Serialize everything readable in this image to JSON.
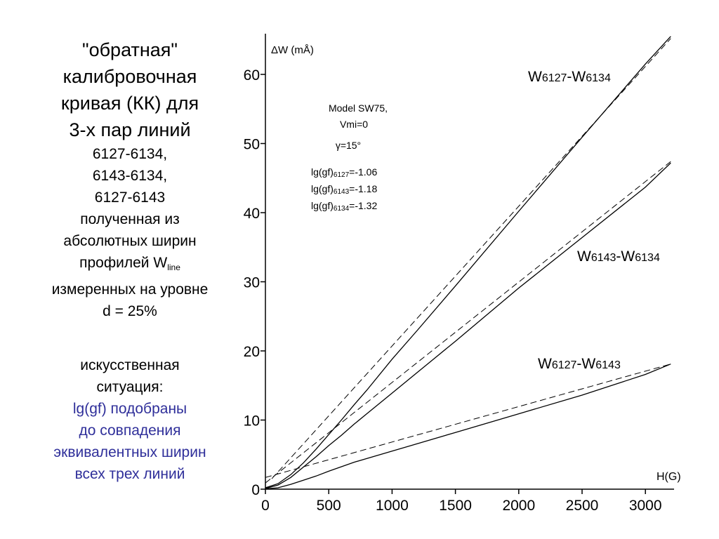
{
  "left": {
    "title_lines": [
      "\"обратная\"",
      "калибровочная",
      "кривая (КК) для",
      "3-х пар линий"
    ],
    "pairs": [
      "6127-6134,",
      "6143-6134,",
      "6127-6143"
    ],
    "desc_line1": "полученная из",
    "desc_line2": "абсолютных ширин",
    "desc_line3_pre": "профилей W",
    "desc_line3_sub": "line",
    "desc_line4": "измеренных на уровне",
    "desc_line5": "d = 25%",
    "situation_lines": [
      "искусственная",
      "ситуация:"
    ],
    "blue_lines": [
      "lg(gf) подобраны",
      "до совпадения",
      "эквивалентных ширин",
      "всех трех линий"
    ]
  },
  "chart_data": {
    "type": "line",
    "xlabel": "H(G)",
    "ylabel": "ΔW (mÅ)",
    "xlim": [
      0,
      3200
    ],
    "ylim": [
      0,
      65
    ],
    "xticks": [
      0,
      500,
      1000,
      1500,
      2000,
      2500,
      3000
    ],
    "yticks": [
      0,
      10,
      20,
      30,
      40,
      50,
      60
    ],
    "grid": false,
    "annotation": {
      "model": "Model SW75,",
      "vmi": "Vmi=0",
      "gamma": "γ=15°",
      "lg1_pre": "lg(gf)",
      "lg1_sub": "6127",
      "lg1_post": "=-1.06",
      "lg2_pre": "lg(gf)",
      "lg2_sub": "6143",
      "lg2_post": "=-1.18",
      "lg3_pre": "lg(gf)",
      "lg3_sub": "6134",
      "lg3_post": "=-1.32"
    },
    "series": [
      {
        "label_parts": [
          "W",
          "6127",
          "-W",
          "6134"
        ],
        "style": "solid",
        "x": [
          0,
          100,
          200,
          300,
          400,
          500,
          600,
          700,
          800,
          1000,
          1200,
          1500,
          2000,
          2500,
          3000,
          3200
        ],
        "y": [
          0.2,
          0.8,
          2.1,
          3.8,
          5.8,
          7.9,
          10.0,
          12.2,
          14.3,
          18.8,
          23.0,
          29.4,
          40.2,
          50.9,
          61.5,
          65.5
        ]
      },
      {
        "style": "dashed",
        "x": [
          50,
          3200
        ],
        "y": [
          1.5,
          65.2
        ]
      },
      {
        "label_parts": [
          "W",
          "6143",
          "-W",
          "6134"
        ],
        "style": "solid",
        "x": [
          0,
          100,
          200,
          300,
          400,
          500,
          600,
          700,
          800,
          1000,
          1200,
          1500,
          2000,
          2500,
          3000,
          3200
        ],
        "y": [
          0.1,
          0.6,
          1.7,
          3.2,
          4.7,
          6.3,
          7.8,
          9.4,
          10.9,
          13.9,
          16.9,
          21.4,
          29.1,
          36.4,
          43.7,
          47.2
        ]
      },
      {
        "style": "dashed",
        "x": [
          0,
          3200
        ],
        "y": [
          0.9,
          47.4
        ]
      },
      {
        "label_parts": [
          "W",
          "6127",
          "-W",
          "6143"
        ],
        "style": "solid",
        "x": [
          0,
          100,
          200,
          300,
          400,
          500,
          700,
          1000,
          1500,
          2000,
          2500,
          3000,
          3200
        ],
        "y": [
          0.05,
          0.2,
          0.7,
          1.3,
          1.9,
          2.6,
          3.9,
          5.5,
          8.2,
          10.9,
          13.6,
          16.6,
          18.1
        ]
      },
      {
        "style": "dashed",
        "x": [
          0,
          3200
        ],
        "y": [
          1.7,
          18.1
        ]
      }
    ],
    "colors": {
      "line": "#000000",
      "blue_text": "#2f2f9a"
    }
  }
}
